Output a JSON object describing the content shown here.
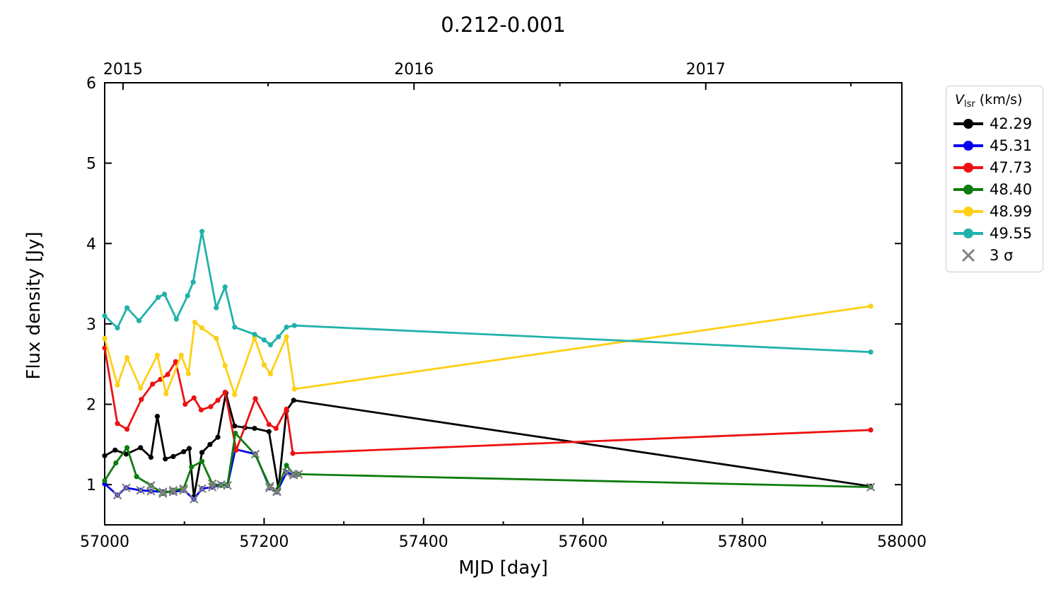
{
  "title": "0.212-0.001",
  "axes": {
    "xlabel": "MJD [day]",
    "ylabel": "Flux density [Jy]",
    "xlim": [
      57000,
      58000
    ],
    "ylim": [
      0.5,
      6.0
    ],
    "x_major_ticks": [
      57000,
      57200,
      57400,
      57600,
      57800,
      58000
    ],
    "x_minor_ticks": [
      57100,
      57300,
      57500,
      57700,
      57900
    ],
    "y_major_ticks": [
      1,
      2,
      3,
      4,
      5,
      6
    ],
    "top_year_ticks": [
      {
        "label": "2015",
        "mjd": 57023
      },
      {
        "label": "2016",
        "mjd": 57388
      },
      {
        "label": "2017",
        "mjd": 57754
      }
    ],
    "top_minor_ticks": [
      57205,
      57571,
      57936
    ]
  },
  "legend": {
    "title_v": "V",
    "title_sub": "lsr",
    "title_rest": " (km/s)",
    "sigma_label": "3 σ",
    "sigma_color": "#808080",
    "entries": [
      {
        "label": "42.29",
        "color": "#000000"
      },
      {
        "label": "45.31",
        "color": "#0000ee"
      },
      {
        "label": "47.73",
        "color": "#ee1111"
      },
      {
        "label": "48.40",
        "color": "#0e7c0e"
      },
      {
        "label": "48.99",
        "color": "#fdd017"
      },
      {
        "label": "49.55",
        "color": "#20b2aa"
      }
    ]
  },
  "chart_data": {
    "type": "line",
    "xlabel": "MJD [day]",
    "ylabel": "Flux density [Jy]",
    "title": "0.212-0.001",
    "xlim": [
      57000,
      58000
    ],
    "ylim": [
      0.5,
      6.0
    ],
    "grid": false,
    "legend_position": "outside-right-top",
    "series": [
      {
        "name": "42.29",
        "color": "#000000",
        "x": [
          57000,
          57013,
          57027,
          57045,
          57058,
          57066,
          57076,
          57086,
          57099,
          57106,
          57112,
          57122,
          57132,
          57142,
          57152,
          57163,
          57176,
          57188,
          57206,
          57218,
          57228,
          57237,
          57961
        ],
        "y": [
          1.36,
          1.43,
          1.38,
          1.46,
          1.34,
          1.85,
          1.32,
          1.35,
          1.41,
          1.45,
          0.85,
          1.4,
          1.5,
          1.59,
          2.14,
          1.73,
          1.71,
          1.7,
          1.66,
          0.95,
          1.92,
          2.05,
          0.98
        ]
      },
      {
        "name": "45.31",
        "color": "#0000ee",
        "x": [
          57000,
          57016,
          57027,
          57045,
          57058,
          57073,
          57086,
          57099,
          57112,
          57122,
          57135,
          57146,
          57154,
          57164,
          57189,
          57207,
          57216,
          57228,
          57237,
          57243
        ],
        "y": [
          1.01,
          0.87,
          0.96,
          0.93,
          0.92,
          0.91,
          0.91,
          0.93,
          0.82,
          0.95,
          0.97,
          1.0,
          0.99,
          1.44,
          1.38,
          0.96,
          0.91,
          1.15,
          1.12,
          1.13
        ]
      },
      {
        "name": "47.73",
        "color": "#ee1111",
        "x": [
          57000,
          57016,
          57028,
          57046,
          57060,
          57070,
          57079,
          57089,
          57101,
          57112,
          57121,
          57133,
          57142,
          57151,
          57165,
          57189,
          57206,
          57215,
          57228,
          57236,
          57961
        ],
        "y": [
          2.7,
          1.76,
          1.69,
          2.06,
          2.25,
          2.31,
          2.37,
          2.53,
          2.0,
          2.08,
          1.93,
          1.97,
          2.05,
          2.15,
          1.43,
          2.07,
          1.75,
          1.7,
          1.94,
          1.39,
          1.68
        ]
      },
      {
        "name": "48.40",
        "color": "#0e7c0e",
        "x": [
          57000,
          57014,
          57028,
          57040,
          57058,
          57073,
          57086,
          57099,
          57109,
          57122,
          57135,
          57146,
          57154,
          57164,
          57189,
          57207,
          57216,
          57228,
          57237,
          57243,
          57961
        ],
        "y": [
          1.05,
          1.27,
          1.46,
          1.1,
          0.99,
          0.89,
          0.93,
          0.95,
          1.22,
          1.29,
          1.01,
          0.99,
          1.0,
          1.64,
          1.37,
          0.98,
          0.92,
          1.24,
          1.13,
          1.13,
          0.97
        ]
      },
      {
        "name": "48.99",
        "color": "#fdd017",
        "x": [
          57000,
          57016,
          57028,
          57045,
          57066,
          57077,
          57096,
          57105,
          57113,
          57122,
          57140,
          57151,
          57163,
          57188,
          57200,
          57208,
          57228,
          57238,
          57961
        ],
        "y": [
          2.82,
          2.24,
          2.58,
          2.2,
          2.61,
          2.13,
          2.61,
          2.38,
          3.02,
          2.95,
          2.82,
          2.48,
          2.12,
          2.83,
          2.49,
          2.38,
          2.84,
          2.19,
          3.22
        ]
      },
      {
        "name": "49.55",
        "color": "#20b2aa",
        "x": [
          57000,
          57016,
          57028,
          57043,
          57067,
          57075,
          57090,
          57104,
          57111,
          57122,
          57140,
          57151,
          57163,
          57188,
          57200,
          57208,
          57218,
          57228,
          57238,
          57961
        ],
        "y": [
          3.1,
          2.95,
          3.2,
          3.04,
          3.33,
          3.37,
          3.06,
          3.35,
          3.52,
          4.15,
          3.2,
          3.46,
          2.96,
          2.87,
          2.8,
          2.74,
          2.84,
          2.96,
          2.98,
          2.65
        ]
      }
    ],
    "sigma3_upper_limits": {
      "marker": "x",
      "color": "#808080",
      "points": [
        [
          57016,
          0.87
        ],
        [
          57027,
          0.96
        ],
        [
          57045,
          0.93
        ],
        [
          57058,
          0.92
        ],
        [
          57073,
          0.91
        ],
        [
          57086,
          0.91
        ],
        [
          57099,
          0.93
        ],
        [
          57112,
          0.82
        ],
        [
          57122,
          0.95
        ],
        [
          57135,
          0.97
        ],
        [
          57146,
          1.0
        ],
        [
          57154,
          0.99
        ],
        [
          57189,
          1.38
        ],
        [
          57207,
          0.96
        ],
        [
          57216,
          0.91
        ],
        [
          57228,
          1.15
        ],
        [
          57237,
          1.12
        ],
        [
          57243,
          1.13
        ],
        [
          57058,
          0.99
        ],
        [
          57073,
          0.89
        ],
        [
          57086,
          0.93
        ],
        [
          57099,
          0.95
        ],
        [
          57135,
          1.01
        ],
        [
          57207,
          0.98
        ],
        [
          57216,
          0.92
        ],
        [
          57237,
          1.13
        ],
        [
          57961,
          0.97
        ]
      ]
    }
  }
}
